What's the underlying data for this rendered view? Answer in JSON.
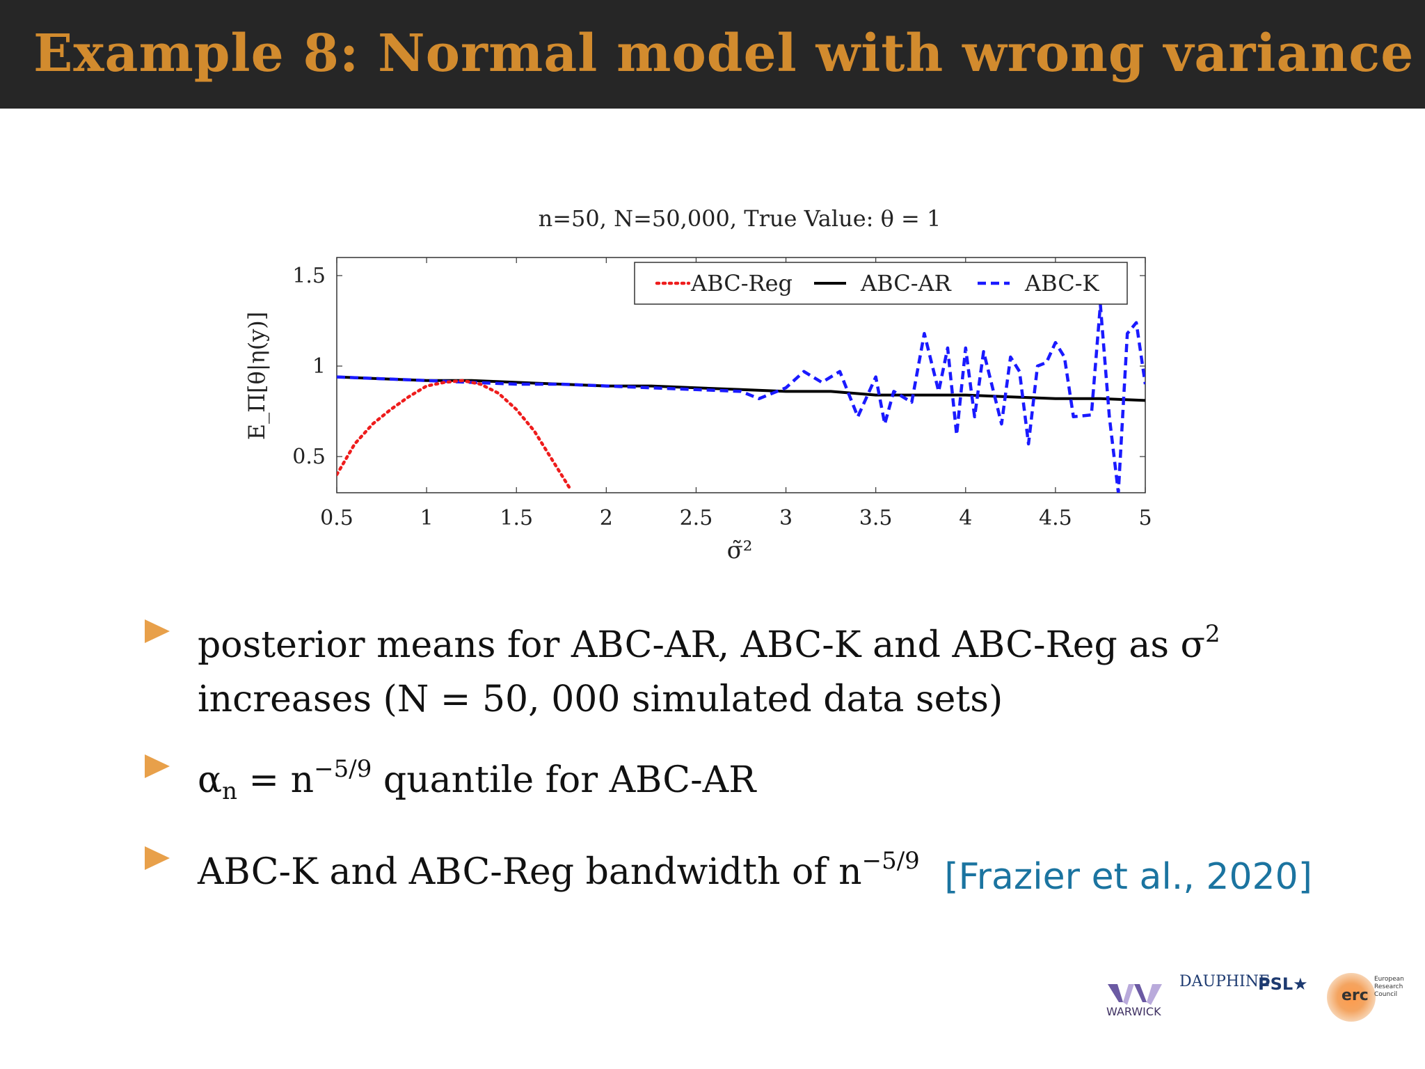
{
  "header": {
    "title": "Example 8: Normal model with wrong variance"
  },
  "chart_data": {
    "type": "line",
    "title": "n=50, N=50,000, True Value: θ = 1",
    "xlabel": "σ̃²",
    "ylabel": "E_Π[θ|η(y)]",
    "xlim": [
      0.5,
      5
    ],
    "ylim": [
      0.3,
      1.6
    ],
    "x_ticks": [
      "0.5",
      "1",
      "1.5",
      "2",
      "2.5",
      "3",
      "3.5",
      "4",
      "4.5",
      "5"
    ],
    "y_ticks": [
      "0.5",
      "1",
      "1.5"
    ],
    "legend_position": "top-right",
    "series": [
      {
        "name": "ABC-Reg",
        "color": "#ee1c1c",
        "style": "dotted",
        "x": [
          0.5,
          0.6,
          0.7,
          0.8,
          0.9,
          1.0,
          1.1,
          1.2,
          1.3,
          1.4,
          1.5,
          1.6,
          1.7,
          1.8
        ],
        "y": [
          0.4,
          0.57,
          0.68,
          0.76,
          0.83,
          0.89,
          0.91,
          0.92,
          0.9,
          0.85,
          0.76,
          0.64,
          0.48,
          0.32
        ]
      },
      {
        "name": "ABC-AR",
        "color": "#000000",
        "style": "solid",
        "x": [
          0.5,
          0.75,
          1.0,
          1.25,
          1.5,
          1.75,
          2.0,
          2.25,
          2.5,
          2.75,
          3.0,
          3.25,
          3.5,
          3.75,
          4.0,
          4.25,
          4.5,
          4.75,
          5.0
        ],
        "y": [
          0.94,
          0.93,
          0.92,
          0.92,
          0.91,
          0.9,
          0.89,
          0.89,
          0.88,
          0.87,
          0.86,
          0.86,
          0.84,
          0.84,
          0.84,
          0.83,
          0.82,
          0.82,
          0.81
        ]
      },
      {
        "name": "ABC-K",
        "color": "#1a1aff",
        "style": "dashed",
        "x": [
          0.5,
          0.75,
          1.0,
          1.25,
          1.5,
          1.75,
          2.0,
          2.25,
          2.5,
          2.75,
          2.85,
          3.0,
          3.1,
          3.2,
          3.3,
          3.4,
          3.5,
          3.55,
          3.6,
          3.7,
          3.77,
          3.85,
          3.9,
          3.95,
          4.0,
          4.05,
          4.1,
          4.2,
          4.25,
          4.3,
          4.35,
          4.4,
          4.45,
          4.5,
          4.55,
          4.6,
          4.7,
          4.75,
          4.8,
          4.85,
          4.9,
          4.95,
          5.0
        ],
        "y": [
          0.94,
          0.93,
          0.92,
          0.91,
          0.9,
          0.9,
          0.89,
          0.88,
          0.87,
          0.86,
          0.82,
          0.88,
          0.97,
          0.91,
          0.97,
          0.72,
          0.94,
          0.68,
          0.86,
          0.8,
          1.18,
          0.86,
          1.1,
          0.62,
          1.1,
          0.72,
          1.08,
          0.68,
          1.05,
          0.97,
          0.57,
          1.0,
          1.02,
          1.13,
          1.05,
          0.72,
          0.73,
          1.34,
          0.72,
          0.3,
          1.18,
          1.24,
          0.9
        ]
      }
    ]
  },
  "bullets": [
    {
      "text1": "posterior means for ABC-AR, ABC-K and ABC-Reg as σ",
      "sup1": "2",
      "text2": "increases (N = 50, 000 simulated data sets)"
    },
    {
      "pre": "α",
      "sub": "n",
      "mid": " = n",
      "sup": "−5/9",
      "post": " quantile for ABC-AR"
    },
    {
      "pre": "ABC-K and ABC-Reg bandwidth of n",
      "sup": "−5/9"
    }
  ],
  "citation": "[Frazier et al., 2020]",
  "logos": {
    "warwick": "WARWICK",
    "dauphine": "DAUPHINE",
    "psl": "PSL★",
    "erc": "erc",
    "erc_sub": "European\nResearch\nCouncil"
  }
}
